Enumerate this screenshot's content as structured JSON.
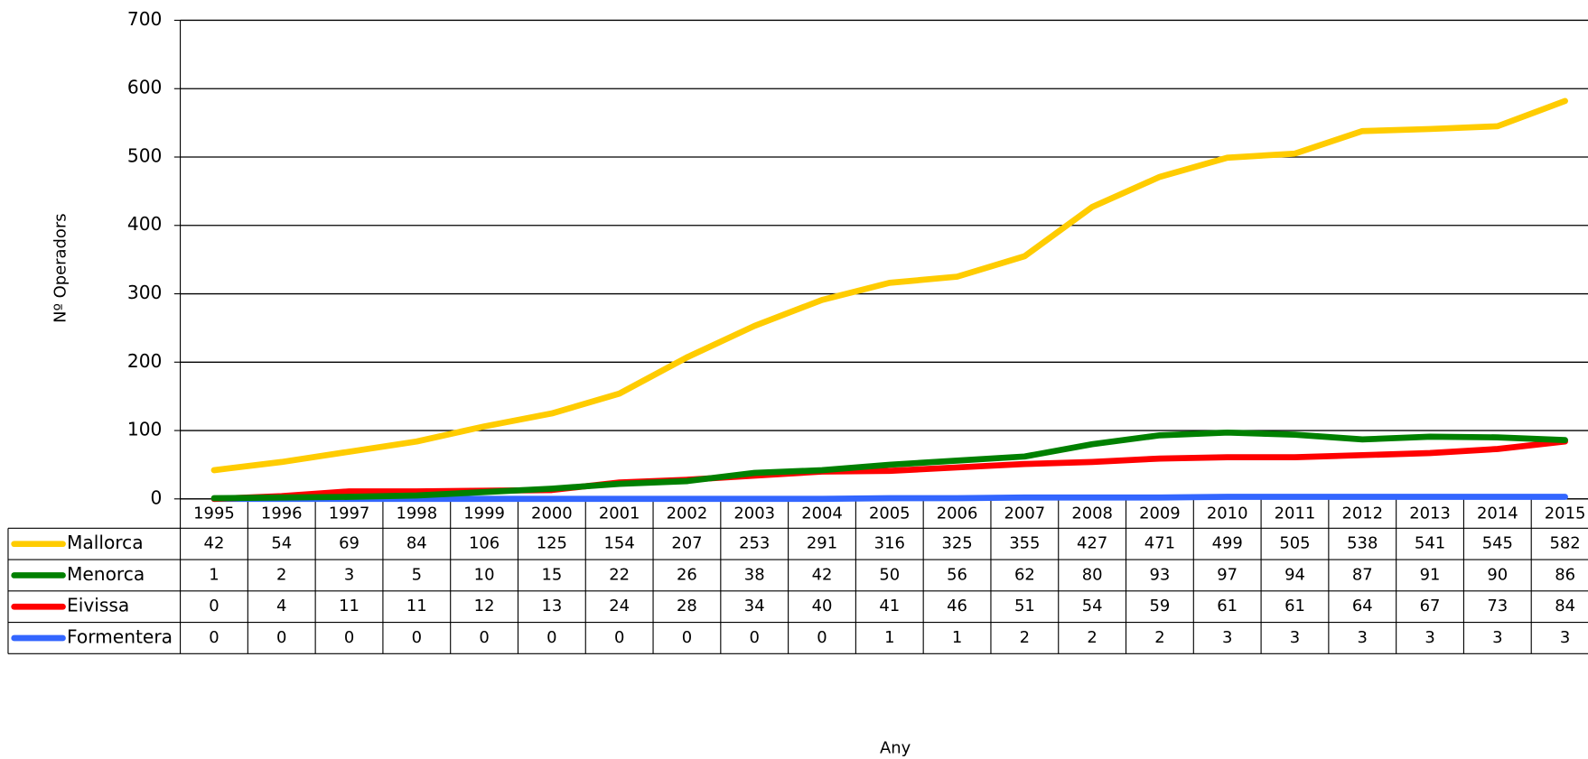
{
  "chart_data": {
    "type": "line",
    "x_label": "Any",
    "y_label": "Nº Operadors",
    "categories": [
      "1995",
      "1996",
      "1997",
      "1998",
      "1999",
      "2000",
      "2001",
      "2002",
      "2003",
      "2004",
      "2005",
      "2006",
      "2007",
      "2008",
      "2009",
      "2010",
      "2011",
      "2012",
      "2013",
      "2014",
      "2015"
    ],
    "series": [
      {
        "name": "Mallorca",
        "color": "#ffcc00",
        "values": [
          42,
          54,
          69,
          84,
          106,
          125,
          154,
          207,
          253,
          291,
          316,
          325,
          355,
          427,
          471,
          499,
          505,
          538,
          541,
          545,
          582
        ]
      },
      {
        "name": "Menorca",
        "color": "#008000",
        "values": [
          1,
          2,
          3,
          5,
          10,
          15,
          22,
          26,
          38,
          42,
          50,
          56,
          62,
          80,
          93,
          97,
          94,
          87,
          91,
          90,
          86
        ]
      },
      {
        "name": "Eivissa",
        "color": "#ff0000",
        "values": [
          0,
          4,
          11,
          11,
          12,
          13,
          24,
          28,
          34,
          40,
          41,
          46,
          51,
          54,
          59,
          61,
          61,
          64,
          67,
          73,
          84
        ]
      },
      {
        "name": "Formentera",
        "color": "#3366ff",
        "values": [
          0,
          0,
          0,
          0,
          0,
          0,
          0,
          0,
          0,
          0,
          1,
          1,
          2,
          2,
          2,
          3,
          3,
          3,
          3,
          3,
          3
        ]
      }
    ],
    "ylim": [
      0,
      700
    ],
    "yticks": [
      0,
      100,
      200,
      300,
      400,
      500,
      600,
      700
    ],
    "grid": true,
    "data_table": true
  }
}
